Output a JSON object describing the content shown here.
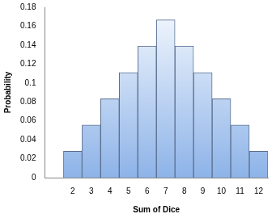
{
  "chart_data": {
    "type": "bar",
    "x_label": "Sum of Dice",
    "y_label": "Probability",
    "categories": [
      null,
      "2",
      "3",
      "4",
      "5",
      "6",
      "7",
      "8",
      "9",
      "10",
      "11",
      "12"
    ],
    "values": [
      null,
      0.0278,
      0.0556,
      0.0833,
      0.1111,
      0.1389,
      0.1667,
      0.1389,
      0.1111,
      0.0833,
      0.0556,
      0.0278
    ],
    "color": "#8db3e8",
    "ylim": [
      0,
      0.18
    ],
    "yticks": [
      0,
      0.02,
      0.04,
      0.06,
      0.08,
      0.1,
      0.12,
      0.14,
      0.16,
      0.18
    ],
    "grid": false
  }
}
